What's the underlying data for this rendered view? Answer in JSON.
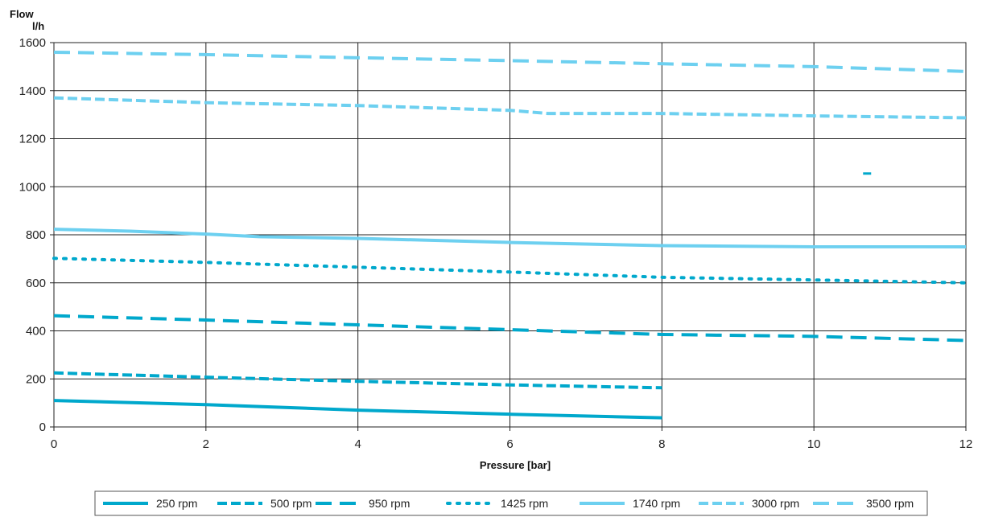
{
  "chart_data": {
    "type": "line",
    "title": "",
    "ylabel_line1": "Flow",
    "ylabel_line2": "l/h",
    "xlabel": "Pressure [bar]",
    "xlim": [
      0,
      12
    ],
    "ylim": [
      0,
      1600
    ],
    "xticks": [
      0,
      2,
      4,
      6,
      8,
      10,
      12
    ],
    "yticks": [
      0,
      200,
      400,
      600,
      800,
      1000,
      1200,
      1400,
      1600
    ],
    "grid": true,
    "legend_position": "bottom",
    "series": [
      {
        "name": "250 rpm",
        "color": "#00A8CC",
        "style": "solid",
        "x": [
          0,
          2,
          4,
          6,
          8
        ],
        "y": [
          110,
          93,
          70,
          53,
          38
        ]
      },
      {
        "name": "500 rpm",
        "color": "#00A8CC",
        "style": "dashed-short",
        "x": [
          0,
          2,
          4,
          6,
          8
        ],
        "y": [
          225,
          207,
          190,
          175,
          163
        ]
      },
      {
        "name": "950 rpm",
        "color": "#00A8CC",
        "style": "dashed-long",
        "x": [
          0,
          2,
          4,
          6,
          8,
          10,
          12
        ],
        "y": [
          463,
          445,
          425,
          405,
          385,
          377,
          360
        ]
      },
      {
        "name": "1425 rpm",
        "color": "#00A8CC",
        "style": "dotted",
        "x": [
          0,
          2,
          4,
          6,
          8,
          10,
          12
        ],
        "y": [
          702,
          685,
          665,
          645,
          623,
          612,
          600
        ]
      },
      {
        "name": "1740 rpm",
        "color": "#6DD0F0",
        "style": "solid",
        "x": [
          0,
          1,
          2,
          2.7,
          4,
          6,
          8,
          10,
          12
        ],
        "y": [
          823,
          815,
          803,
          792,
          785,
          768,
          755,
          750,
          750
        ]
      },
      {
        "name": "3000 rpm",
        "color": "#6DD0F0",
        "style": "dashed-short",
        "x": [
          0,
          2,
          4,
          6,
          6.5,
          8,
          10,
          12
        ],
        "y": [
          1370,
          1350,
          1338,
          1318,
          1305,
          1305,
          1295,
          1287
        ]
      },
      {
        "name": "3500 rpm",
        "color": "#6DD0F0",
        "style": "dashed-long",
        "x": [
          0,
          2,
          4,
          6,
          8,
          10,
          12
        ],
        "y": [
          1560,
          1550,
          1537,
          1525,
          1512,
          1500,
          1480
        ]
      }
    ],
    "annotations": [
      {
        "color": "#00A8CC",
        "x": 10.7,
        "y": 1055
      }
    ]
  }
}
